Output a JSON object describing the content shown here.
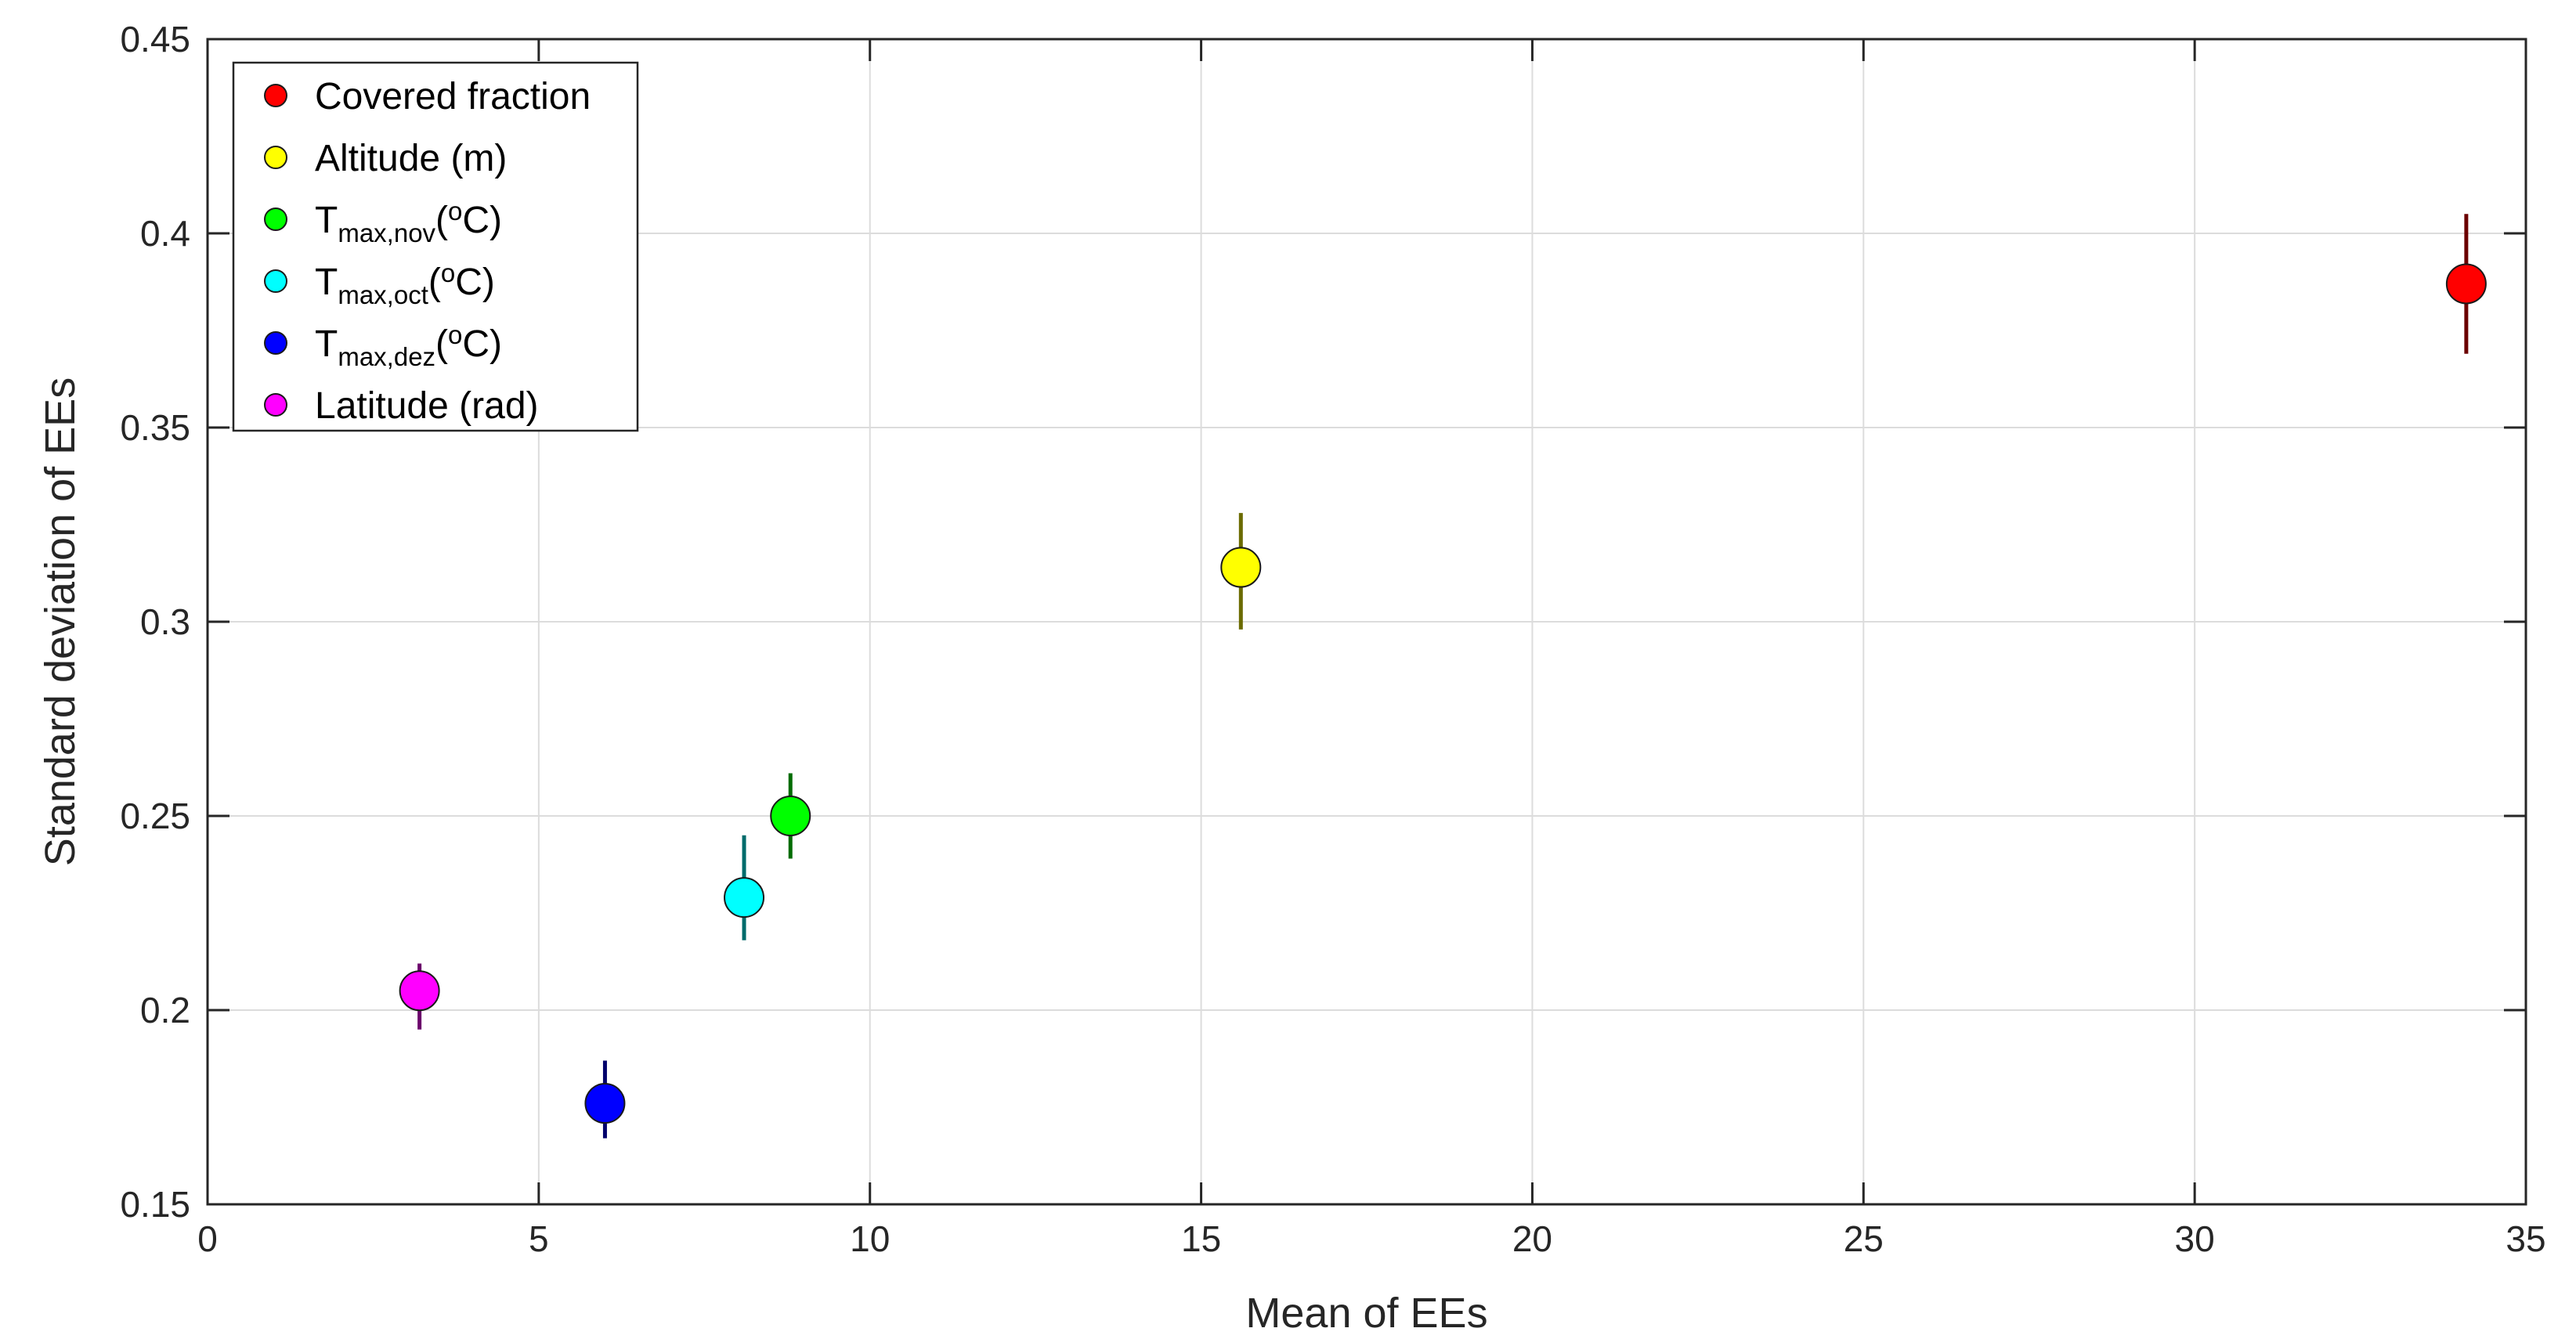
{
  "chart_data": {
    "type": "scatter",
    "title": "",
    "xlabel": "Mean of EEs",
    "ylabel": "Standard deviation of EEs",
    "xlim": [
      0,
      35
    ],
    "ylim": [
      0.15,
      0.45
    ],
    "xticks": [
      "0",
      "5",
      "10",
      "15",
      "20",
      "25",
      "30",
      "35"
    ],
    "yticks": [
      "0.15",
      "0.2",
      "0.25",
      "0.3",
      "0.35",
      "0.4",
      "0.45"
    ],
    "grid": true,
    "legend_position": "top-left",
    "error_bars": "vertical",
    "series": [
      {
        "name": "Covered fraction",
        "label": {
          "main": "Covered fraction",
          "sub": "",
          "sup": "",
          "tail": ""
        },
        "color": "#ff0000",
        "x": 34.1,
        "y": 0.387,
        "err_low": 0.369,
        "err_high": 0.405
      },
      {
        "name": "Altitude (m)",
        "label": {
          "main": "Altitude (m)",
          "sub": "",
          "sup": "",
          "tail": ""
        },
        "color": "#ffff00",
        "x": 15.6,
        "y": 0.314,
        "err_low": 0.298,
        "err_high": 0.328
      },
      {
        "name": "Tmax,nov(oC)",
        "label": {
          "main": "T",
          "sub": "max,nov",
          "mid": "(",
          "sup": "o",
          "tail": "C)"
        },
        "color": "#00ff00",
        "x": 8.8,
        "y": 0.25,
        "err_low": 0.239,
        "err_high": 0.261
      },
      {
        "name": "Tmax,oct(oC)",
        "label": {
          "main": "T",
          "sub": "max,oct",
          "mid": "(",
          "sup": "o",
          "tail": "C)"
        },
        "color": "#00ffff",
        "x": 8.1,
        "y": 0.229,
        "err_low": 0.218,
        "err_high": 0.245
      },
      {
        "name": "Tmax,dez(oC)",
        "label": {
          "main": "T",
          "sub": "max,dez",
          "mid": "(",
          "sup": "o",
          "tail": "C)"
        },
        "color": "#0000ff",
        "x": 6.0,
        "y": 0.176,
        "err_low": 0.167,
        "err_high": 0.187
      },
      {
        "name": "Latitude (rad)",
        "label": {
          "main": "Latitude (rad)",
          "sub": "",
          "sup": "",
          "tail": ""
        },
        "color": "#ff00ff",
        "x": 3.2,
        "y": 0.205,
        "err_low": 0.195,
        "err_high": 0.212
      }
    ]
  }
}
